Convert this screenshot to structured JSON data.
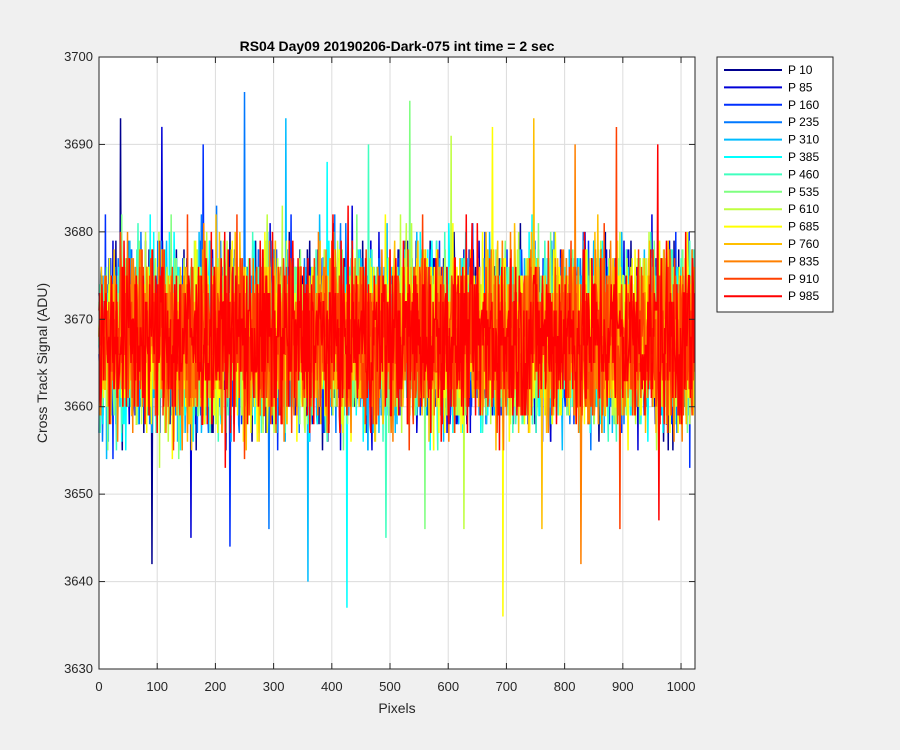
{
  "chart_data": {
    "type": "line",
    "title": "RS04 Day09 20190206-Dark-075 int time = 2 sec",
    "xlabel": "Pixels",
    "ylabel": "Cross Track Signal (ADU)",
    "xlim": [
      0,
      1024
    ],
    "ylim": [
      3630,
      3700
    ],
    "xticks": [
      0,
      100,
      200,
      300,
      400,
      500,
      600,
      700,
      800,
      900,
      1000
    ],
    "yticks": [
      3630,
      3640,
      3650,
      3660,
      3670,
      3680,
      3690,
      3700
    ],
    "grid": true,
    "legend_position": "outside-top-right",
    "x_start": 0,
    "x_end": 1023,
    "signal_mean": 3668,
    "signal_spread": 5,
    "series": [
      {
        "name": "P 10",
        "color": "#00008f",
        "spike_max": 3693,
        "spike_min": 3642
      },
      {
        "name": "P 85",
        "color": "#0000d6",
        "spike_max": 3692,
        "spike_min": 3645
      },
      {
        "name": "P 160",
        "color": "#0030ff",
        "spike_max": 3690,
        "spike_min": 3644
      },
      {
        "name": "P 235",
        "color": "#0078ff",
        "spike_max": 3696,
        "spike_min": 3646
      },
      {
        "name": "P 310",
        "color": "#00bcff",
        "spike_max": 3693,
        "spike_min": 3640
      },
      {
        "name": "P 385",
        "color": "#00ffff",
        "spike_max": 3688,
        "spike_min": 3637
      },
      {
        "name": "P 460",
        "color": "#40ffbf",
        "spike_max": 3690,
        "spike_min": 3645
      },
      {
        "name": "P 535",
        "color": "#7fff80",
        "spike_max": 3695,
        "spike_min": 3646
      },
      {
        "name": "P 610",
        "color": "#bfff40",
        "spike_max": 3691,
        "spike_min": 3646
      },
      {
        "name": "P 685",
        "color": "#ffff00",
        "spike_max": 3692,
        "spike_min": 3636
      },
      {
        "name": "P 760",
        "color": "#ffbf00",
        "spike_max": 3693,
        "spike_min": 3646
      },
      {
        "name": "P 835",
        "color": "#ff8000",
        "spike_max": 3690,
        "spike_min": 3642
      },
      {
        "name": "P 910",
        "color": "#ff4000",
        "spike_max": 3692,
        "spike_min": 3646
      },
      {
        "name": "P 985",
        "color": "#ff0000",
        "spike_max": 3690,
        "spike_min": 3647
      }
    ]
  }
}
